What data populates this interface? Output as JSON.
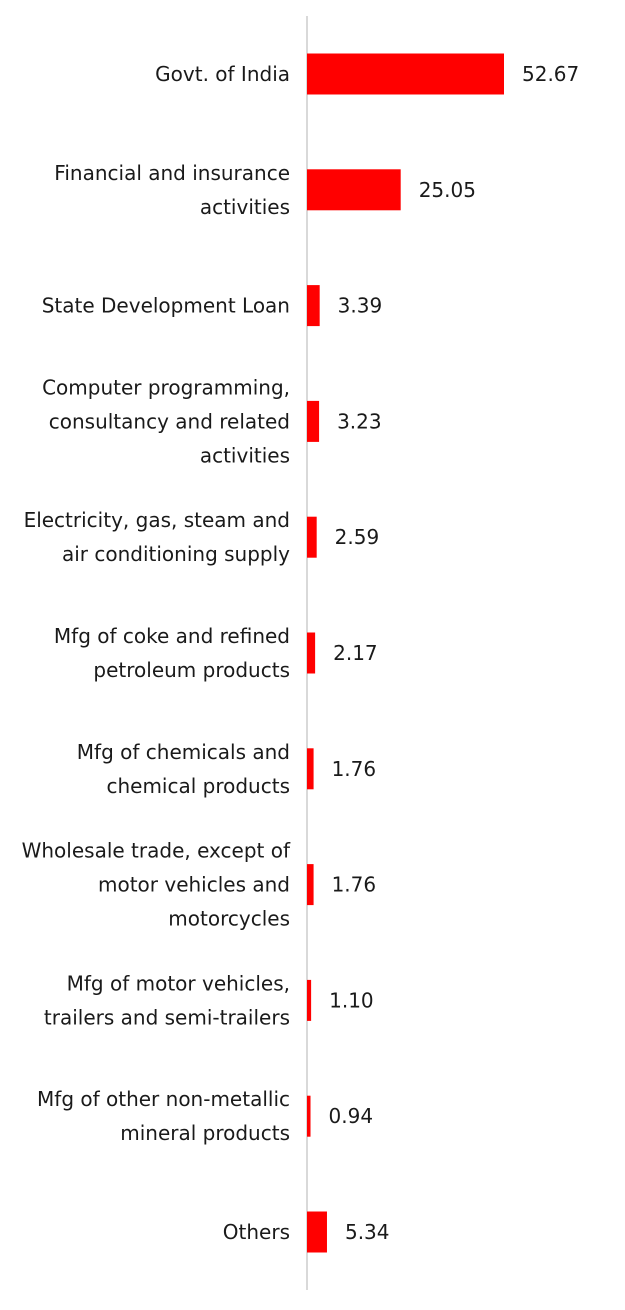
{
  "chart_data": {
    "type": "bar",
    "orientation": "horizontal",
    "categories": [
      "Govt. of India",
      "Financial and insurance activities",
      "State Development Loan",
      "Computer programming, consultancy and related activities",
      "Electricity, gas, steam and air conditioning supply",
      "Mfg of coke and refined petroleum products",
      "Mfg of chemicals and chemical products",
      "Wholesale trade, except of motor vehicles and motorcycles",
      "Mfg of motor vehicles, trailers and semi-trailers",
      "Mfg of other non-metallic mineral products",
      "Others"
    ],
    "values": [
      52.67,
      25.05,
      3.39,
      3.23,
      2.59,
      2.17,
      1.76,
      1.76,
      1.1,
      0.94,
      5.34
    ],
    "value_labels": [
      "52.67",
      "25.05",
      "3.39",
      "3.23",
      "2.59",
      "2.17",
      "1.76",
      "1.76",
      "1.10",
      "0.94",
      "5.34"
    ],
    "label_lines": [
      [
        "Govt. of India"
      ],
      [
        "Financial and insurance",
        "activities"
      ],
      [
        "State Development Loan"
      ],
      [
        "Computer programming,",
        "consultancy and related",
        "activities"
      ],
      [
        "Electricity, gas, steam and",
        "air conditioning supply"
      ],
      [
        "Mfg of coke and refined",
        "petroleum products"
      ],
      [
        "Mfg of chemicals and",
        "chemical products"
      ],
      [
        "Wholesale trade, except of",
        "motor vehicles and",
        "motorcycles"
      ],
      [
        "Mfg of motor vehicles,",
        "trailers and semi-trailers"
      ],
      [
        "Mfg of other non-metallic",
        "mineral products"
      ],
      [
        "Others"
      ]
    ],
    "xlim": [
      0,
      52.67
    ],
    "bar_color": "#ff0000",
    "axis_color": "#d9d9d9",
    "grid": false,
    "legend": "none"
  }
}
